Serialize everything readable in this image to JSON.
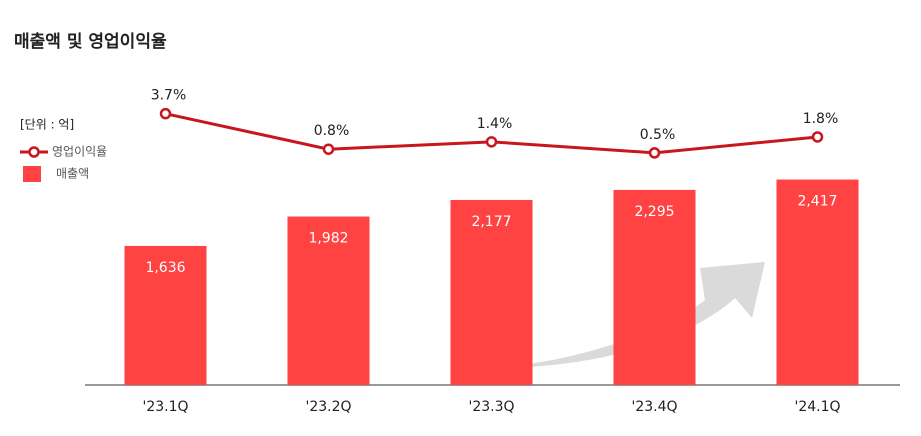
{
  "chart_data": {
    "type": "bar",
    "title": "매출액 및 영업이익율",
    "unit_label": "[단위 : 억]",
    "categories": [
      "'23.1Q",
      "'23.2Q",
      "'23.3Q",
      "'23.4Q",
      "'24.1Q"
    ],
    "series": [
      {
        "name": "매출액",
        "type": "bar",
        "color": "#ff4242",
        "values": [
          1636,
          1982,
          2177,
          2295,
          2417
        ],
        "value_labels": [
          "1,636",
          "1,982",
          "2,177",
          "2,295",
          "2,417"
        ]
      },
      {
        "name": "영업이익율",
        "type": "line",
        "axis": "y2",
        "color": "#c8161d",
        "values": [
          3.7,
          0.8,
          1.4,
          0.5,
          1.8
        ],
        "value_labels": [
          "3.7%",
          "0.8%",
          "1.4%",
          "0.5%",
          "1.8%"
        ]
      }
    ],
    "ylim": [
      0,
      3000
    ],
    "y2lim": [
      0,
      4
    ]
  }
}
